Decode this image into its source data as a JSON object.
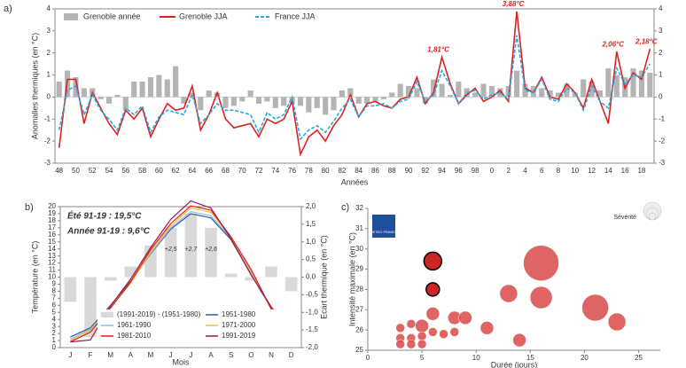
{
  "chart_data": [
    {
      "type": "combo",
      "panel": "a)",
      "ylabel": "Anomalies thermiques (en °C)",
      "xlabel": "Années",
      "categories": [
        "48",
        null,
        "50",
        null,
        "52",
        null,
        "54",
        null,
        "56",
        null,
        "58",
        null,
        "60",
        null,
        "62",
        null,
        "64",
        null,
        "66",
        null,
        "68",
        null,
        "70",
        null,
        "72",
        null,
        "74",
        null,
        "76",
        null,
        "78",
        null,
        "80",
        null,
        "82",
        null,
        "84",
        null,
        "86",
        null,
        "88",
        null,
        "90",
        null,
        "92",
        null,
        "94",
        null,
        "96",
        null,
        "98",
        null,
        "0",
        null,
        "2",
        null,
        "4",
        null,
        "6",
        null,
        "8",
        null,
        "10",
        null,
        "12",
        null,
        "14",
        null,
        "16",
        null,
        "18",
        null
      ],
      "series": [
        {
          "name": "Grenoble année",
          "kind": "bar",
          "color": "#b4b4b4",
          "values": [
            0.7,
            1.2,
            0.9,
            0.4,
            0.4,
            -0.1,
            -0.3,
            0.1,
            -0.6,
            0.7,
            0.7,
            0.9,
            1.0,
            0.8,
            1.4,
            -0.3,
            0.2,
            -0.6,
            0.3,
            0.2,
            -0.5,
            -0.4,
            -0.2,
            0.3,
            -0.3,
            -0.2,
            -0.5,
            -0.4,
            -0.3,
            -0.4,
            -0.7,
            -0.5,
            -0.8,
            -0.6,
            0.3,
            0.4,
            -0.3,
            -0.3,
            -0.2,
            -0.1,
            0.2,
            0.6,
            0.5,
            0.4,
            -0.3,
            0.8,
            0.6,
            0.1,
            0.7,
            0.4,
            0.2,
            0.6,
            0.5,
            0.4,
            0.5,
            1.2,
            0.6,
            0.5,
            0.4,
            0.3,
            0.2,
            0.6,
            0.2,
            0.8,
            0.7,
            0.3,
            1.3,
            1.0,
            0.9,
            1.3,
            1.2,
            1.1
          ]
        },
        {
          "name": "Grenoble JJA",
          "kind": "line",
          "color": "#e02020",
          "dashed": false,
          "values": [
            -2.3,
            0.8,
            0.8,
            -1.2,
            0.2,
            -0.5,
            -1.2,
            -1.7,
            -0.6,
            -1.0,
            -0.5,
            -1.8,
            -1.0,
            -0.3,
            -0.6,
            -0.5,
            0.5,
            -1.5,
            -0.8,
            0.2,
            -1.0,
            -1.4,
            -1.3,
            -1.2,
            -1.8,
            -1.0,
            -1.2,
            -1.0,
            -0.2,
            -2.6,
            -1.8,
            -1.5,
            -2.0,
            -1.3,
            -0.8,
            0.1,
            -0.9,
            -0.3,
            -0.2,
            -0.4,
            -0.5,
            -0.1,
            0.0,
            0.9,
            -0.3,
            0.2,
            1.81,
            0.6,
            -0.3,
            0.1,
            0.4,
            -0.2,
            0.0,
            0.3,
            -0.2,
            3.88,
            0.4,
            0.2,
            0.9,
            0.0,
            -0.1,
            0.6,
            0.2,
            -0.5,
            0.8,
            -0.2,
            -1.2,
            2.06,
            0.4,
            1.1,
            0.8,
            2.18
          ]
        },
        {
          "name": "France JJA",
          "kind": "line",
          "color": "#29a8e0",
          "dashed": true,
          "values": [
            -1.5,
            0.3,
            0.5,
            -0.8,
            0.1,
            -0.6,
            -1.0,
            -1.5,
            -0.5,
            -0.8,
            -0.4,
            -1.6,
            -0.9,
            -0.6,
            -0.7,
            -0.8,
            0.1,
            -1.2,
            -0.8,
            -0.3,
            -0.6,
            -0.6,
            -0.7,
            -0.8,
            -1.6,
            -0.7,
            -1.0,
            -0.8,
            0.0,
            -1.9,
            -1.5,
            -1.3,
            -1.6,
            -1.1,
            -0.5,
            -0.1,
            -0.9,
            -0.4,
            -0.4,
            -0.3,
            -0.5,
            -0.2,
            -0.1,
            0.7,
            -0.2,
            0.1,
            1.2,
            0.5,
            -0.3,
            0.2,
            0.3,
            -0.1,
            0.1,
            0.2,
            -0.1,
            2.8,
            0.3,
            0.2,
            0.8,
            -0.1,
            -0.2,
            0.4,
            0.2,
            -0.6,
            0.5,
            -0.2,
            -0.5,
            1.3,
            0.6,
            1.0,
            0.9,
            1.5
          ]
        }
      ],
      "annotations": [
        "1,81°C",
        "3,88°C",
        "2,06°C",
        "2,18°C"
      ],
      "ylim": [
        -3,
        4
      ],
      "yticks": [
        -3,
        -2,
        -1,
        0,
        1,
        2,
        3,
        4
      ],
      "y2lim": [
        -3,
        4
      ],
      "y2ticks": [
        -3,
        -2,
        -1,
        0,
        1,
        2,
        3,
        4
      ]
    },
    {
      "type": "combo",
      "panel": "b)",
      "ylabel": "Température (en °C)",
      "y2label": "Ecart thermique (en °C)",
      "xlabel": "Mois",
      "categories": [
        "J",
        "F",
        "M",
        "A",
        "M",
        "J",
        "J",
        "A",
        "S",
        "O",
        "N",
        "D"
      ],
      "series": [
        {
          "name": "(1991-2019) - (1951-1980)",
          "kind": "bar",
          "axis": "y2",
          "color": "#d9d9d9",
          "values": [
            -0.7,
            -1.7,
            -0.1,
            0.3,
            0.9,
            1.4,
            1.8,
            1.4,
            0.1,
            -0.1,
            0.3,
            -0.4
          ]
        },
        {
          "name": "1951-1980",
          "kind": "line",
          "color": "#2e5ea8",
          "values": [
            1.5,
            2.8,
            6.0,
            9.4,
            13.3,
            16.8,
            19.0,
            18.4,
            15.3,
            10.4,
            5.5,
            2.3
          ]
        },
        {
          "name": "1961-1990",
          "kind": "line",
          "color": "#8fbce6",
          "values": [
            1.2,
            2.6,
            5.8,
            9.2,
            13.4,
            17.0,
            19.3,
            18.7,
            15.5,
            10.6,
            5.5,
            2.1
          ]
        },
        {
          "name": "1971-2000",
          "kind": "line",
          "color": "#f0c030",
          "values": [
            1.0,
            2.4,
            5.7,
            9.1,
            13.6,
            17.3,
            19.8,
            19.2,
            15.6,
            10.9,
            5.4,
            2.0
          ]
        },
        {
          "name": "1981-2010",
          "kind": "line",
          "color": "#e02020",
          "values": [
            0.8,
            2.2,
            5.6,
            9.3,
            13.9,
            17.6,
            20.1,
            19.5,
            15.7,
            11.1,
            5.5,
            2.0
          ]
        },
        {
          "name": "1991-2019",
          "kind": "line",
          "color": "#9a1a4a",
          "values": [
            0.8,
            1.1,
            5.9,
            9.7,
            14.2,
            18.2,
            20.8,
            19.8,
            15.4,
            10.3,
            5.8,
            1.9
          ]
        }
      ],
      "annotations": [
        "Été 91-19 : 19,5°C",
        "Année 91-19 : 9,6°C"
      ],
      "bar_annotations": [
        "+2,5",
        "+2,7",
        "+2,6"
      ],
      "ylim": [
        0,
        20
      ],
      "yticks": [
        0,
        1,
        2,
        3,
        4,
        5,
        6,
        7,
        8,
        9,
        10,
        11,
        12,
        13,
        14,
        15,
        16,
        17,
        18,
        19,
        20
      ],
      "y2lim": [
        -2,
        2
      ],
      "y2ticks": [
        {
          "value": -2,
          "label": "-2,0"
        },
        {
          "value": -1.5,
          "label": "-1,5"
        },
        {
          "value": -1,
          "label": "-1,0"
        },
        {
          "value": -0.5,
          "label": "-0,5"
        },
        {
          "value": 0,
          "label": "0,0"
        },
        {
          "value": 0.5,
          "label": "0,5"
        },
        {
          "value": 1,
          "label": "1,0"
        },
        {
          "value": 1.5,
          "label": "1,5"
        },
        {
          "value": 2,
          "label": "2,0"
        }
      ]
    },
    {
      "type": "bubble",
      "panel": "c)",
      "ylabel": "Intensité maximale (en °C)",
      "xlabel": "Durée (jours)",
      "logo": "METEO FRANCE",
      "size_legend": "Sévérité",
      "series": [
        {
          "color": "#d94a4a",
          "x": [
            3,
            3,
            3,
            4,
            4,
            4,
            5,
            5,
            5,
            6,
            6,
            7,
            8,
            8,
            9,
            11,
            13,
            14,
            16,
            16,
            21,
            23
          ],
          "y": [
            26.1,
            25.6,
            25.3,
            26.3,
            25.6,
            25.3,
            26.2,
            25.7,
            25.3,
            26.8,
            25.9,
            25.8,
            26.6,
            25.9,
            26.6,
            26.1,
            27.8,
            25.5,
            29.3,
            27.6,
            27.1,
            26.4
          ],
          "size": [
            1,
            1,
            1,
            1,
            1,
            1,
            1.5,
            1,
            1,
            1.5,
            1,
            1,
            1.5,
            1,
            1.5,
            1.5,
            2,
            1.5,
            4,
            2.5,
            3,
            2
          ]
        },
        {
          "color": "#c00000",
          "x": [
            6,
            6
          ],
          "y": [
            29.4,
            28.0
          ],
          "size": [
            2,
            1.5
          ]
        }
      ],
      "xlim": [
        0,
        27
      ],
      "xticks": [
        0,
        5,
        10,
        15,
        20,
        25
      ],
      "ylim": [
        25,
        32
      ],
      "yticks": [
        25,
        26,
        27,
        28,
        29,
        30,
        31,
        32
      ]
    }
  ]
}
